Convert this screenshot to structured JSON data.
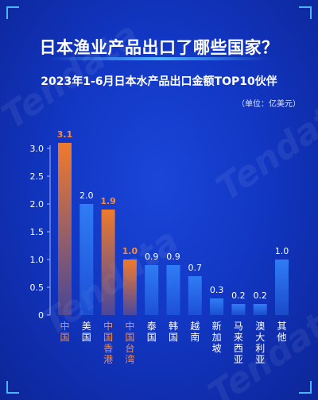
{
  "title": "日本渔业产品出口了哪些国家？",
  "subtitle": "2023年1-6月日本水产品出口金额TOP10伙伴",
  "unit": "（单位：亿美元）",
  "watermark": "Tendata",
  "colors": {
    "background": "#1237c4",
    "highlight_bar": "#f07a2a",
    "highlight_text": "#ff8a35",
    "normal_bar": "#2f7cf5",
    "text": "#ffffff",
    "accent": "#4fb3ff"
  },
  "chart_data": {
    "type": "bar",
    "title": "2023年1-6月日本水产品出口金额TOP10伙伴",
    "ylabel": "",
    "xlabel": "",
    "unit": "亿美元",
    "ylim": [
      0,
      3.0
    ],
    "yticks": [
      "0",
      "0.5",
      "1.0",
      "1.5",
      "2.0",
      "2.5",
      "3.0"
    ],
    "grid": false,
    "categories": [
      "中国",
      "美国",
      "中国香港",
      "中国台湾",
      "泰国",
      "韩国",
      "越南",
      "新加坡",
      "马来西亚",
      "澳大利亚",
      "其他"
    ],
    "values": [
      3.1,
      2.0,
      1.9,
      1.0,
      0.9,
      0.9,
      0.7,
      0.3,
      0.2,
      0.2,
      1.0
    ],
    "value_labels": [
      "3.1",
      "2.0",
      "1.9",
      "1.0",
      "0.9",
      "0.9",
      "0.7",
      "0.3",
      "0.2",
      "0.2",
      "1.0"
    ],
    "highlighted": [
      true,
      false,
      true,
      true,
      false,
      false,
      false,
      false,
      false,
      false,
      false
    ]
  }
}
